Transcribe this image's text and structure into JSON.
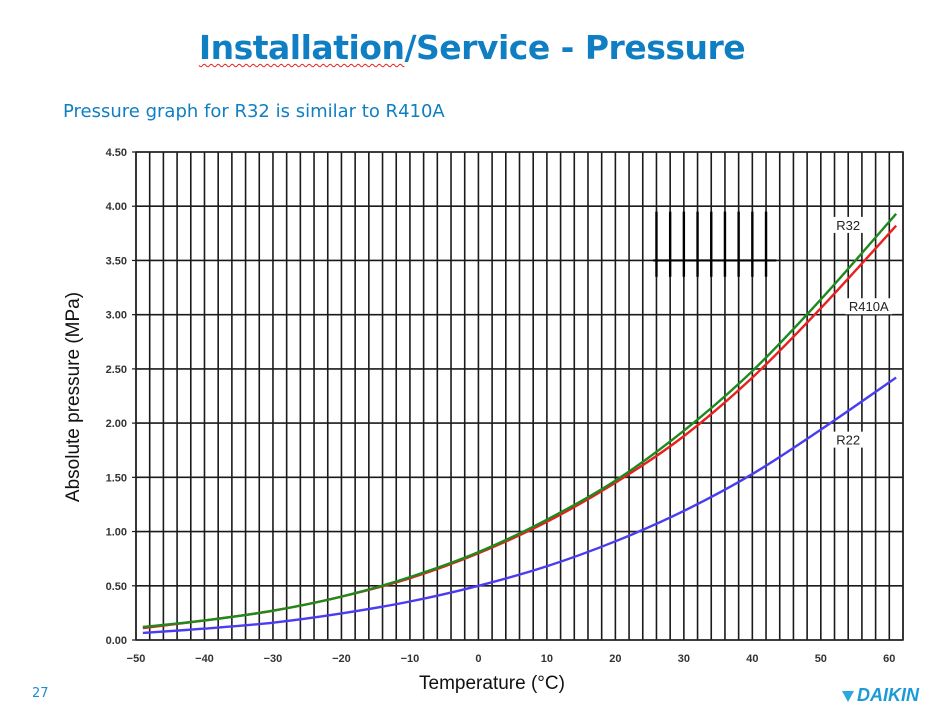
{
  "slide": {
    "title_part1": "Installation",
    "title_part2": "/Service - Pressure",
    "subtitle": "Pressure graph for R32 is similar to R410A",
    "page_number": "27",
    "logo_text": "DAIKIN",
    "accent_color": "#0f7ec2"
  },
  "chart_data": {
    "type": "line",
    "title": "",
    "xlabel": "Temperature (°C)",
    "ylabel": "Absolute pressure (MPa)",
    "xlim": [
      -50,
      62
    ],
    "ylim": [
      0,
      4.5
    ],
    "x_ticks": [
      -50,
      -40,
      -30,
      -20,
      -10,
      0,
      10,
      20,
      30,
      40,
      50,
      60
    ],
    "x_tick_labels": [
      "−50",
      "−40",
      "−30",
      "−20",
      "−10",
      "0",
      "10",
      "20",
      "30",
      "40",
      "50",
      "60"
    ],
    "y_ticks": [
      0,
      0.5,
      1.0,
      1.5,
      2.0,
      2.5,
      3.0,
      3.5,
      4.0,
      4.5
    ],
    "y_tick_labels": [
      "0.00",
      "0.50",
      "1.00",
      "1.50",
      "2.00",
      "2.50",
      "3.00",
      "3.50",
      "4.00",
      "4.50"
    ],
    "grid": true,
    "x_grid_step": 2,
    "x": [
      -49,
      -40,
      -30,
      -20,
      -10,
      0,
      10,
      20,
      30,
      40,
      50,
      61
    ],
    "series": [
      {
        "name": "R32",
        "color": "#1e8a1e",
        "values": [
          0.12,
          0.18,
          0.27,
          0.4,
          0.58,
          0.81,
          1.11,
          1.47,
          1.93,
          2.48,
          3.14,
          3.93
        ]
      },
      {
        "name": "R410A",
        "color": "#e8201e",
        "values": [
          0.11,
          0.18,
          0.27,
          0.4,
          0.57,
          0.8,
          1.09,
          1.45,
          1.88,
          2.42,
          3.06,
          3.82
        ]
      },
      {
        "name": "R22",
        "color": "#4a3cf0",
        "values": [
          0.065,
          0.105,
          0.16,
          0.245,
          0.355,
          0.5,
          0.68,
          0.91,
          1.19,
          1.53,
          1.94,
          2.42
        ]
      }
    ],
    "annotations": [
      {
        "text": "R32",
        "series": "R32",
        "x": 54,
        "y": 3.8
      },
      {
        "text": "R410A",
        "series": "R410A",
        "x": 57,
        "y": 3.05
      },
      {
        "text": "R22",
        "series": "R22",
        "x": 54,
        "y": 1.82
      }
    ]
  }
}
